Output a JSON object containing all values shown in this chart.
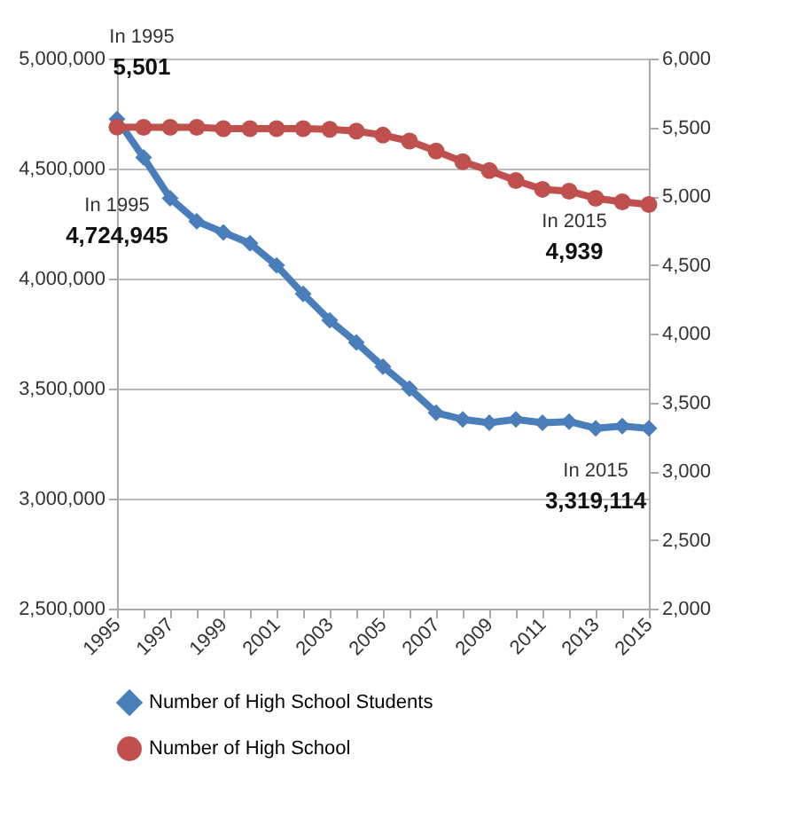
{
  "chart_data": {
    "type": "line",
    "x": [
      1995,
      1996,
      1997,
      1998,
      1999,
      2000,
      2001,
      2002,
      2003,
      2004,
      2005,
      2006,
      2007,
      2008,
      2009,
      2010,
      2011,
      2012,
      2013,
      2014,
      2015
    ],
    "series": [
      {
        "name": "Number of High School Students",
        "color": "#4a7ebb",
        "marker": "diamond",
        "values": [
          4724945,
          4550000,
          4365000,
          4260000,
          4210000,
          4160000,
          4060000,
          3930000,
          3810000,
          3710000,
          3600000,
          3500000,
          3390000,
          3360000,
          3345000,
          3360000,
          3345000,
          3350000,
          3320000,
          3330000,
          3319114
        ]
      },
      {
        "name": "Number of High School",
        "color": "#c0504d",
        "marker": "circle",
        "axis": "y2",
        "values": [
          5501,
          5500,
          5500,
          5500,
          5490,
          5490,
          5490,
          5490,
          5485,
          5473,
          5443,
          5400,
          5327,
          5250,
          5186,
          5113,
          5049,
          5036,
          4984,
          4958,
          4939
        ]
      }
    ],
    "xlim": [
      1995,
      2015
    ],
    "xticks": [
      1995,
      {
        "value": 1996,
        "label": null
      },
      1997,
      {
        "value": 1998,
        "label": null
      },
      1999,
      {
        "value": 2000,
        "label": null
      },
      2001,
      {
        "value": 2002,
        "label": null
      },
      2003,
      {
        "value": 2004,
        "label": null
      },
      2005,
      {
        "value": 2006,
        "label": null
      },
      2007,
      {
        "value": 2008,
        "label": null
      },
      2009,
      {
        "value": 2010,
        "label": null
      },
      2011,
      {
        "value": 2012,
        "label": null
      },
      2013,
      {
        "value": 2014,
        "label": null
      },
      2015
    ],
    "ylim": [
      2500000,
      5000000
    ],
    "yticks": [
      {
        "value": 2500000,
        "label": "2,500,000"
      },
      {
        "value": 3000000,
        "label": "3,000,000"
      },
      {
        "value": 3500000,
        "label": "3,500,000"
      },
      {
        "value": 4000000,
        "label": "4,000,000"
      },
      {
        "value": 4500000,
        "label": "4,500,000"
      },
      {
        "value": 5000000,
        "label": "5,000,000"
      }
    ],
    "y2lim": [
      2000,
      6000
    ],
    "y2ticks": [
      {
        "value": 2000,
        "label": "2,000"
      },
      {
        "value": 2500,
        "label": "2,500"
      },
      {
        "value": 3000,
        "label": "3,000"
      },
      {
        "value": 3500,
        "label": "3,500"
      },
      {
        "value": 4000,
        "label": "4,000"
      },
      {
        "value": 4500,
        "label": "4,500"
      },
      {
        "value": 5000,
        "label": "5,000"
      },
      {
        "value": 5500,
        "label": "5,500"
      },
      {
        "value": 6000,
        "label": "6,000"
      }
    ],
    "annotations": [
      "In 1995\n5,501",
      "In 1995\n4,724,945",
      "In 2015\n4,939",
      {
        "text": "In 2015\n3,319,114",
        "x": 2015,
        "y": 3319114
      }
    ],
    "grid": "y",
    "legend": "bottom",
    "line_style": "solid"
  }
}
